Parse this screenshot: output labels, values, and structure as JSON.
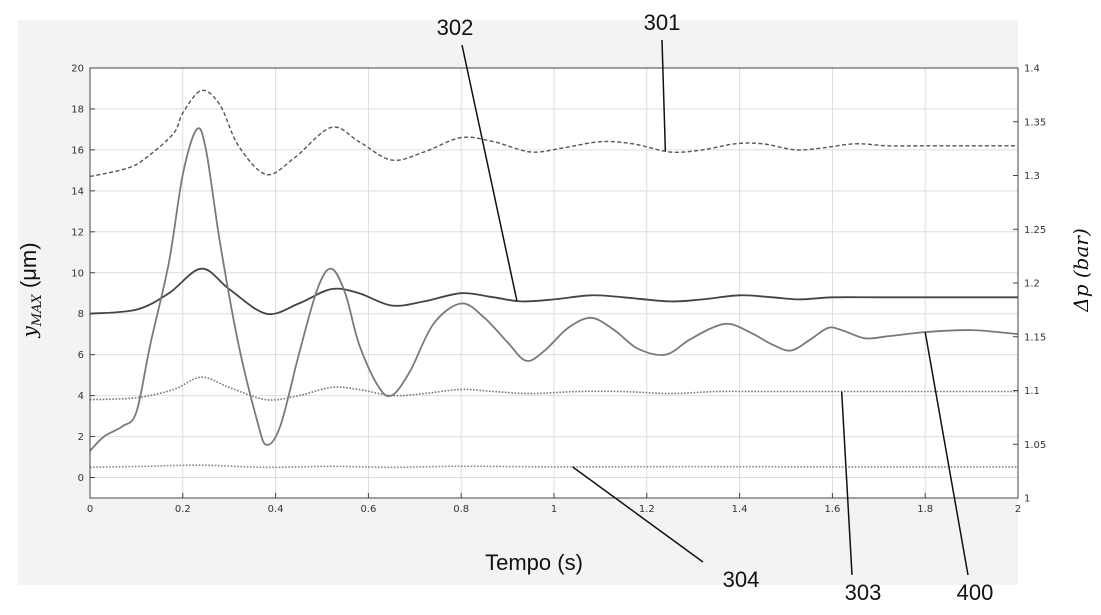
{
  "chart_data": {
    "type": "line",
    "xlabel": "Tempo (s)",
    "ylabel_left_base": "y",
    "ylabel_left_sub": "MAX",
    "ylabel_left_unit": " (μm)",
    "ylabel_right_base": "Δp",
    "ylabel_right_unit": " (bar)",
    "xlim": [
      0,
      2
    ],
    "ylim_left": [
      -1,
      20
    ],
    "ylim_right": [
      1,
      1.4
    ],
    "grid": true,
    "x_ticks": [
      0,
      0.2,
      0.4,
      0.6,
      0.8,
      1,
      1.2,
      1.4,
      1.6,
      1.8,
      2
    ],
    "x_tick_labels": [
      "0",
      "0.2",
      "0.4",
      "0.6",
      "0.8",
      "1",
      "1.2",
      "1.4",
      "1.6",
      "1.8",
      "2"
    ],
    "y_left_ticks": [
      0,
      2,
      4,
      6,
      8,
      10,
      12,
      14,
      16,
      18,
      20
    ],
    "y_left_tick_labels": [
      "0",
      "2",
      "4",
      "6",
      "8",
      "10",
      "12",
      "14",
      "16",
      "18",
      "20"
    ],
    "y_right_ticks": [
      1,
      1.05,
      1.1,
      1.15,
      1.2,
      1.25,
      1.3,
      1.35,
      1.4
    ],
    "y_right_tick_labels": [
      "1",
      "1.05",
      "1.1",
      "1.15",
      "1.2",
      "1.25",
      "1.3",
      "1.35",
      "1.4"
    ],
    "series": [
      {
        "callout": "301",
        "dash": "dashed",
        "color": "#555555",
        "x": [
          0,
          0.08,
          0.12,
          0.18,
          0.2,
          0.24,
          0.28,
          0.32,
          0.38,
          0.44,
          0.52,
          0.58,
          0.65,
          0.72,
          0.8,
          0.87,
          0.95,
          1.02,
          1.1,
          1.17,
          1.25,
          1.32,
          1.39,
          1.45,
          1.52,
          1.58,
          1.65,
          1.72,
          1.8,
          1.9,
          2.0
        ],
        "values": [
          14.7,
          15.1,
          15.6,
          16.8,
          17.8,
          18.9,
          18.2,
          16.2,
          14.8,
          15.6,
          17.1,
          16.4,
          15.5,
          15.9,
          16.6,
          16.4,
          15.9,
          16.1,
          16.4,
          16.3,
          15.9,
          16.0,
          16.3,
          16.3,
          16.0,
          16.1,
          16.3,
          16.2,
          16.2,
          16.2,
          16.2
        ]
      },
      {
        "callout": "302",
        "dash": "solid",
        "color": "#444444",
        "x": [
          0,
          0.1,
          0.17,
          0.24,
          0.3,
          0.38,
          0.45,
          0.52,
          0.58,
          0.65,
          0.72,
          0.8,
          0.87,
          0.93,
          1.0,
          1.08,
          1.15,
          1.25,
          1.32,
          1.4,
          1.47,
          1.53,
          1.6,
          1.7,
          1.8,
          1.9,
          2.0
        ],
        "values": [
          8.0,
          8.2,
          9.0,
          10.2,
          9.2,
          8.0,
          8.5,
          9.2,
          9.0,
          8.4,
          8.6,
          9.0,
          8.8,
          8.6,
          8.7,
          8.9,
          8.8,
          8.6,
          8.7,
          8.9,
          8.8,
          8.7,
          8.8,
          8.8,
          8.8,
          8.8,
          8.8
        ]
      },
      {
        "callout": "400",
        "dash": "solid",
        "color": "#7a7a7a",
        "x": [
          0,
          0.03,
          0.07,
          0.1,
          0.13,
          0.17,
          0.2,
          0.23,
          0.25,
          0.28,
          0.32,
          0.36,
          0.38,
          0.41,
          0.45,
          0.49,
          0.52,
          0.55,
          0.58,
          0.62,
          0.65,
          0.69,
          0.74,
          0.8,
          0.85,
          0.9,
          0.94,
          0.98,
          1.03,
          1.08,
          1.13,
          1.18,
          1.24,
          1.29,
          1.34,
          1.38,
          1.43,
          1.47,
          1.51,
          1.55,
          1.59,
          1.62,
          1.67,
          1.72,
          1.8,
          1.9,
          2.0
        ],
        "values": [
          1.3,
          2.0,
          2.5,
          3.2,
          6.5,
          10.5,
          14.8,
          17.0,
          16.0,
          11.5,
          6.5,
          2.8,
          1.6,
          2.5,
          6.0,
          9.2,
          10.2,
          9.0,
          6.5,
          4.5,
          4.0,
          5.2,
          7.5,
          8.5,
          7.8,
          6.6,
          5.7,
          6.2,
          7.3,
          7.8,
          7.2,
          6.3,
          6.0,
          6.7,
          7.3,
          7.5,
          7.0,
          6.5,
          6.2,
          6.7,
          7.3,
          7.2,
          6.8,
          6.9,
          7.1,
          7.2,
          7.0
        ]
      },
      {
        "callout": "303",
        "dash": "dotted",
        "color": "#777777",
        "x": [
          0,
          0.1,
          0.18,
          0.24,
          0.3,
          0.38,
          0.45,
          0.52,
          0.58,
          0.65,
          0.72,
          0.8,
          0.87,
          0.95,
          1.05,
          1.15,
          1.25,
          1.35,
          1.45,
          1.55,
          1.65,
          1.75,
          1.85,
          2.0
        ],
        "values": [
          3.8,
          3.9,
          4.3,
          4.9,
          4.4,
          3.8,
          4.0,
          4.4,
          4.3,
          4.0,
          4.1,
          4.3,
          4.2,
          4.1,
          4.2,
          4.2,
          4.1,
          4.2,
          4.2,
          4.2,
          4.2,
          4.2,
          4.2,
          4.2
        ]
      },
      {
        "callout": "304",
        "dash": "dotted",
        "color": "#888888",
        "x": [
          0,
          0.12,
          0.24,
          0.38,
          0.52,
          0.65,
          0.8,
          1.0,
          1.2,
          1.4,
          1.6,
          1.8,
          2.0
        ],
        "values": [
          0.5,
          0.55,
          0.6,
          0.5,
          0.55,
          0.5,
          0.55,
          0.52,
          0.53,
          0.53,
          0.52,
          0.52,
          0.52
        ]
      }
    ]
  }
}
